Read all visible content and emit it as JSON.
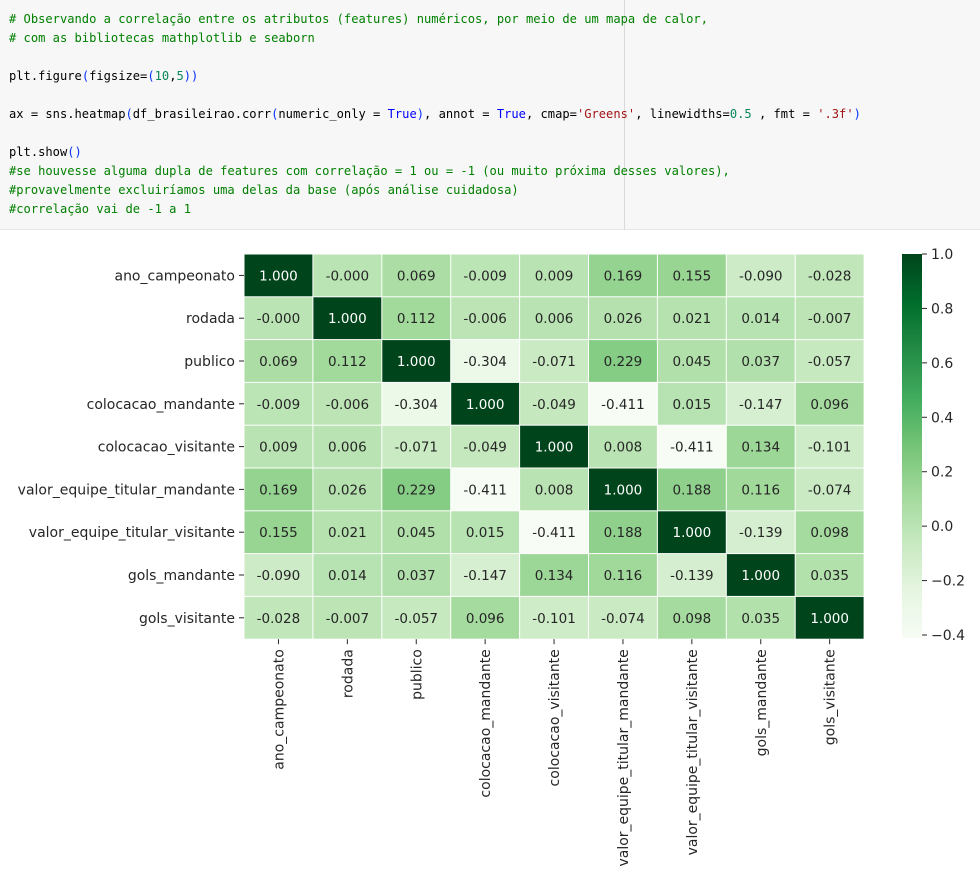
{
  "code_cell": {
    "lines": [
      [
        {
          "t": "# Observando a correlação entre os atributos (features) numéricos, por meio de um mapa de calor,",
          "c": "c"
        }
      ],
      [
        {
          "t": "# com as bibliotecas mathplotlib e seaborn",
          "c": "c"
        }
      ],
      [],
      [
        {
          "t": "plt.figure",
          "c": ""
        },
        {
          "t": "(",
          "c": "p"
        },
        {
          "t": "figsize=",
          "c": ""
        },
        {
          "t": "(",
          "c": "p"
        },
        {
          "t": "10",
          "c": "n"
        },
        {
          "t": ",",
          "c": ""
        },
        {
          "t": "5",
          "c": "n"
        },
        {
          "t": "))",
          "c": "p"
        }
      ],
      [],
      [
        {
          "t": "ax = sns.heatmap",
          "c": ""
        },
        {
          "t": "(",
          "c": "p"
        },
        {
          "t": "df_brasileirao.corr",
          "c": ""
        },
        {
          "t": "(",
          "c": "p"
        },
        {
          "t": "numeric_only = ",
          "c": ""
        },
        {
          "t": "True",
          "c": "k"
        },
        {
          "t": ")",
          "c": "p"
        },
        {
          "t": ", annot = ",
          "c": ""
        },
        {
          "t": "True",
          "c": "k"
        },
        {
          "t": ", cmap=",
          "c": ""
        },
        {
          "t": "'Greens'",
          "c": "s"
        },
        {
          "t": ", linewidths=",
          "c": ""
        },
        {
          "t": "0.5",
          "c": "n"
        },
        {
          "t": " , fmt = ",
          "c": ""
        },
        {
          "t": "'.3f'",
          "c": "s"
        },
        {
          "t": ")",
          "c": "p"
        }
      ],
      [],
      [
        {
          "t": "plt.show",
          "c": ""
        },
        {
          "t": "()",
          "c": "p"
        }
      ],
      [
        {
          "t": "#se houvesse alguma dupla de features com correlação = 1 ou = -1 (ou muito próxima desses valores),",
          "c": "c"
        }
      ],
      [
        {
          "t": "#provavelmente excluiríamos uma delas da base (após análise cuidadosa)",
          "c": "c"
        }
      ],
      [
        {
          "t": "#correlação vai de -1 a 1",
          "c": "c"
        }
      ]
    ]
  },
  "chart_data": {
    "type": "heatmap",
    "title": "",
    "xlabel": "",
    "ylabel": "",
    "cmap": "Greens",
    "cmap_stops": [
      "#f7fcf5",
      "#e5f5e0",
      "#c7e9c0",
      "#a1d99b",
      "#74c476",
      "#41ab5d",
      "#238b45",
      "#006d2c",
      "#00441b"
    ],
    "vmin": -0.411,
    "vmax": 1.0,
    "labels": [
      "ano_campeonato",
      "rodada",
      "publico",
      "colocacao_mandante",
      "colocacao_visitante",
      "valor_equipe_titular_mandante",
      "valor_equipe_titular_visitante",
      "gols_mandante",
      "gols_visitante"
    ],
    "values": [
      [
        1.0,
        -0.0,
        0.069,
        -0.009,
        0.009,
        0.169,
        0.155,
        -0.09,
        -0.028
      ],
      [
        -0.0,
        1.0,
        0.112,
        -0.006,
        0.006,
        0.026,
        0.021,
        0.014,
        -0.007
      ],
      [
        0.069,
        0.112,
        1.0,
        -0.304,
        -0.071,
        0.229,
        0.045,
        0.037,
        -0.057
      ],
      [
        -0.009,
        -0.006,
        -0.304,
        1.0,
        -0.049,
        -0.411,
        0.015,
        -0.147,
        0.096
      ],
      [
        0.009,
        0.006,
        -0.071,
        -0.049,
        1.0,
        0.008,
        -0.411,
        0.134,
        -0.101
      ],
      [
        0.169,
        0.026,
        0.229,
        -0.411,
        0.008,
        1.0,
        0.188,
        0.116,
        -0.074
      ],
      [
        0.155,
        0.021,
        0.045,
        0.015,
        -0.411,
        0.188,
        1.0,
        -0.139,
        0.098
      ],
      [
        -0.09,
        0.014,
        0.037,
        -0.147,
        0.134,
        0.116,
        -0.139,
        1.0,
        0.035
      ],
      [
        -0.028,
        -0.007,
        -0.057,
        0.096,
        -0.101,
        -0.074,
        0.098,
        0.035,
        1.0
      ]
    ],
    "annotations": [
      [
        "1.000",
        "-0.000",
        "0.069",
        "-0.009",
        "0.009",
        "0.169",
        "0.155",
        "-0.090",
        "-0.028"
      ],
      [
        "-0.000",
        "1.000",
        "0.112",
        "-0.006",
        "0.006",
        "0.026",
        "0.021",
        "0.014",
        "-0.007"
      ],
      [
        "0.069",
        "0.112",
        "1.000",
        "-0.304",
        "-0.071",
        "0.229",
        "0.045",
        "0.037",
        "-0.057"
      ],
      [
        "-0.009",
        "-0.006",
        "-0.304",
        "1.000",
        "-0.049",
        "-0.411",
        "0.015",
        "-0.147",
        "0.096"
      ],
      [
        "0.009",
        "0.006",
        "-0.071",
        "-0.049",
        "1.000",
        "0.008",
        "-0.411",
        "0.134",
        "-0.101"
      ],
      [
        "0.169",
        "0.026",
        "0.229",
        "-0.411",
        "0.008",
        "1.000",
        "0.188",
        "0.116",
        "-0.074"
      ],
      [
        "0.155",
        "0.021",
        "0.045",
        "0.015",
        "-0.411",
        "0.188",
        "1.000",
        "-0.139",
        "0.098"
      ],
      [
        "-0.090",
        "0.014",
        "0.037",
        "-0.147",
        "0.134",
        "0.116",
        "-0.139",
        "1.000",
        "0.035"
      ],
      [
        "-0.028",
        "-0.007",
        "-0.057",
        "0.096",
        "-0.101",
        "-0.074",
        "0.098",
        "0.035",
        "1.000"
      ]
    ],
    "colorbar": {
      "ticks": [
        1.0,
        0.8,
        0.6,
        0.4,
        0.2,
        0.0,
        -0.2,
        -0.4
      ],
      "tick_labels": [
        "1.0",
        "0.8",
        "0.6",
        "0.4",
        "0.2",
        "0.0",
        "−0.2",
        "−0.4"
      ]
    }
  }
}
